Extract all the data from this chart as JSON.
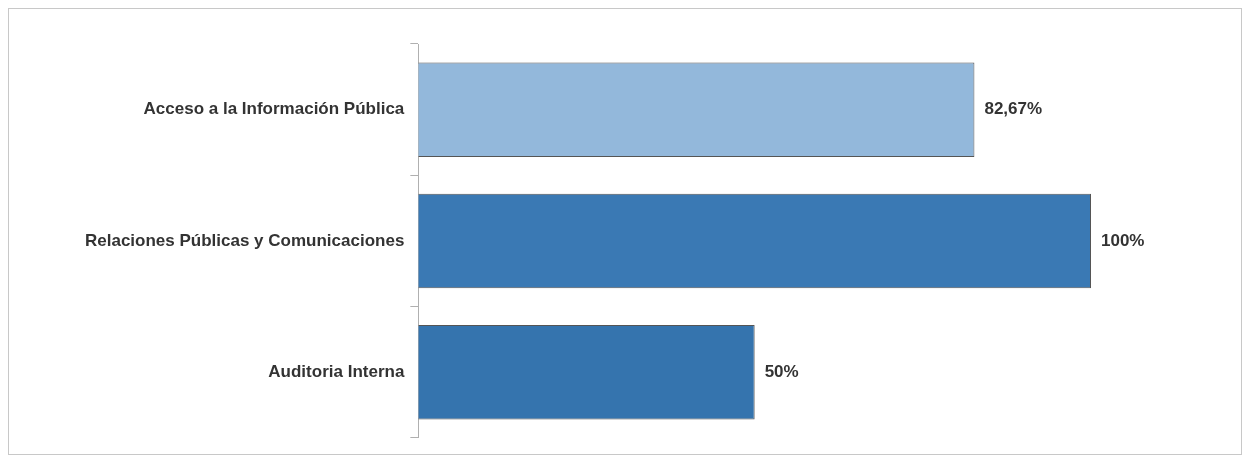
{
  "chart_data": {
    "type": "bar",
    "orientation": "horizontal",
    "categories": [
      "Acceso a la Información Pública",
      "Relaciones Públicas y Comunicaciones",
      "Auditoria Interna"
    ],
    "values": [
      82.67,
      100,
      50
    ],
    "colors": [
      "#93b8db",
      "#3a79b4",
      "#3574ae"
    ],
    "value_labels": [
      "82,67%",
      "100%",
      "50%"
    ],
    "legend": false,
    "grid": false
  }
}
